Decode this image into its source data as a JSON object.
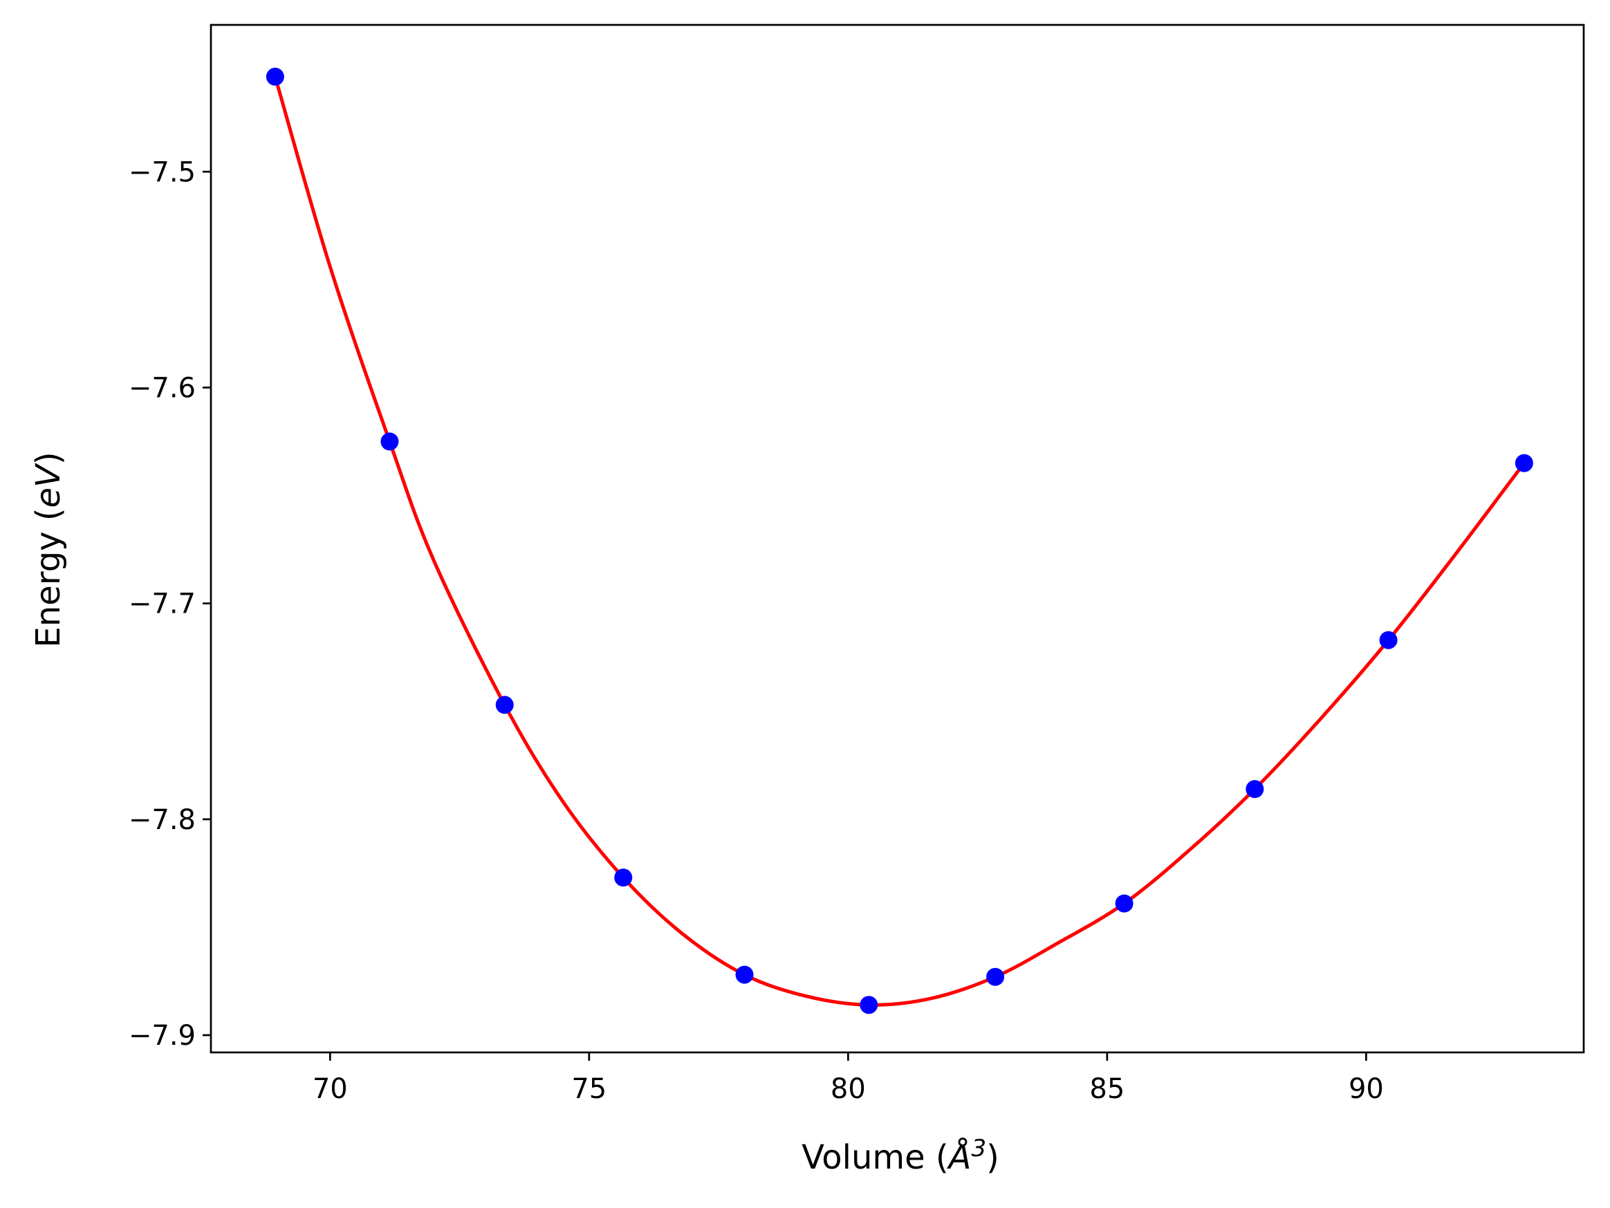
{
  "chart_data": {
    "type": "line",
    "title": "",
    "xlabel": {
      "prefix": "Volume (",
      "symbol": "Å",
      "superscript": "3",
      "suffix": ")"
    },
    "ylabel": {
      "prefix": "Energy (",
      "unit": "eV",
      "suffix": ")"
    },
    "xlim": [
      67.7,
      94.2
    ],
    "ylim": [
      -7.908,
      -7.432
    ],
    "x_ticks": [
      70,
      75,
      80,
      85,
      90
    ],
    "x_tick_labels": [
      "70",
      "75",
      "80",
      "85",
      "90"
    ],
    "y_ticks": [
      -7.5,
      -7.6,
      -7.7,
      -7.8,
      -7.9
    ],
    "y_tick_labels": [
      "−7.5",
      "−7.6",
      "−7.7",
      "−7.8",
      "−7.9"
    ],
    "grid": false,
    "legend": "none",
    "series": [
      {
        "kind": "scatter",
        "color": "#0000ff",
        "x": [
          68.94,
          71.15,
          73.37,
          75.66,
          78.0,
          80.4,
          82.84,
          85.33,
          87.85,
          90.43,
          93.05
        ],
        "y": [
          -7.456,
          -7.625,
          -7.747,
          -7.827,
          -7.872,
          -7.886,
          -7.873,
          -7.839,
          -7.786,
          -7.717,
          -7.635
        ]
      },
      {
        "kind": "line",
        "color": "#ff0000",
        "x": [
          68.94,
          70.0,
          71.15,
          72.0,
          73.37,
          74.5,
          75.66,
          76.8,
          78.0,
          79.2,
          80.4,
          81.6,
          82.84,
          84.0,
          85.33,
          86.6,
          87.85,
          89.1,
          90.43,
          91.7,
          93.05
        ],
        "y": [
          -7.456,
          -7.544,
          -7.625,
          -7.68,
          -7.747,
          -7.792,
          -7.827,
          -7.853,
          -7.872,
          -7.882,
          -7.886,
          -7.883,
          -7.873,
          -7.858,
          -7.839,
          -7.814,
          -7.786,
          -7.754,
          -7.717,
          -7.678,
          -7.635
        ]
      }
    ]
  }
}
